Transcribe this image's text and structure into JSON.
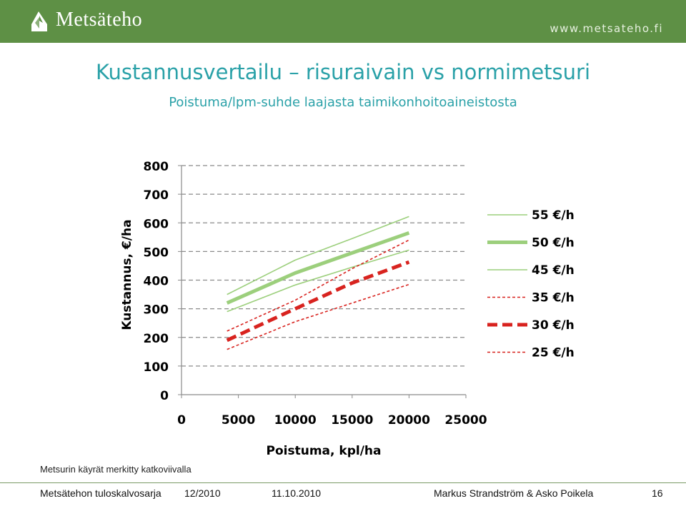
{
  "header": {
    "logo_text": "Metsäteho",
    "site_url": "www.metsateho.fi"
  },
  "slide": {
    "title": "Kustannusvertailu – risuraivain vs normimetsuri",
    "subtitle": "Poistuma/lpm-suhde laajasta taimikonhoitoaineistosta"
  },
  "chart_data": {
    "type": "line",
    "title": "",
    "xlabel": "Poistuma, kpl/ha",
    "ylabel": "Kustannus, €/ha",
    "xlim": [
      0,
      25000
    ],
    "ylim": [
      0,
      800
    ],
    "x_ticks": [
      0,
      5000,
      10000,
      15000,
      20000,
      25000
    ],
    "y_ticks": [
      0,
      100,
      200,
      300,
      400,
      500,
      600,
      700,
      800
    ],
    "grid": "horizontal dashed",
    "legend_position": "right",
    "series": [
      {
        "name": "55 €/h",
        "color": "#9ccf7c",
        "style": "solid-thin",
        "points": [
          [
            4000,
            350
          ],
          [
            10000,
            470
          ],
          [
            15000,
            545
          ],
          [
            20000,
            622
          ]
        ]
      },
      {
        "name": "50 €/h",
        "color": "#9ccf7c",
        "style": "solid-thick",
        "points": [
          [
            4000,
            320
          ],
          [
            10000,
            425
          ],
          [
            15000,
            495
          ],
          [
            20000,
            565
          ]
        ]
      },
      {
        "name": "45 €/h",
        "color": "#9ccf7c",
        "style": "solid-thin",
        "points": [
          [
            4000,
            290
          ],
          [
            10000,
            383
          ],
          [
            15000,
            445
          ],
          [
            20000,
            505
          ]
        ]
      },
      {
        "name": "35 €/h",
        "color": "#d8231f",
        "style": "dashed-thin",
        "points": [
          [
            4000,
            222
          ],
          [
            10000,
            330
          ],
          [
            15000,
            440
          ],
          [
            20000,
            540
          ]
        ]
      },
      {
        "name": "30 €/h",
        "color": "#d8231f",
        "style": "dashed-thick",
        "points": [
          [
            4000,
            190
          ],
          [
            10000,
            300
          ],
          [
            15000,
            390
          ],
          [
            20000,
            463
          ]
        ]
      },
      {
        "name": "25 €/h",
        "color": "#d8231f",
        "style": "dashed-thin",
        "points": [
          [
            4000,
            158
          ],
          [
            10000,
            255
          ],
          [
            15000,
            320
          ],
          [
            20000,
            385
          ]
        ]
      }
    ]
  },
  "footnote": "Metsurin käyrät merkitty katkoviivalla",
  "footer": {
    "series_name": "Metsätehon tuloskalvosarja",
    "issue": "12/2010",
    "date": "11.10.2010",
    "authors": "Markus Strandström & Asko Poikela",
    "page": "16"
  }
}
